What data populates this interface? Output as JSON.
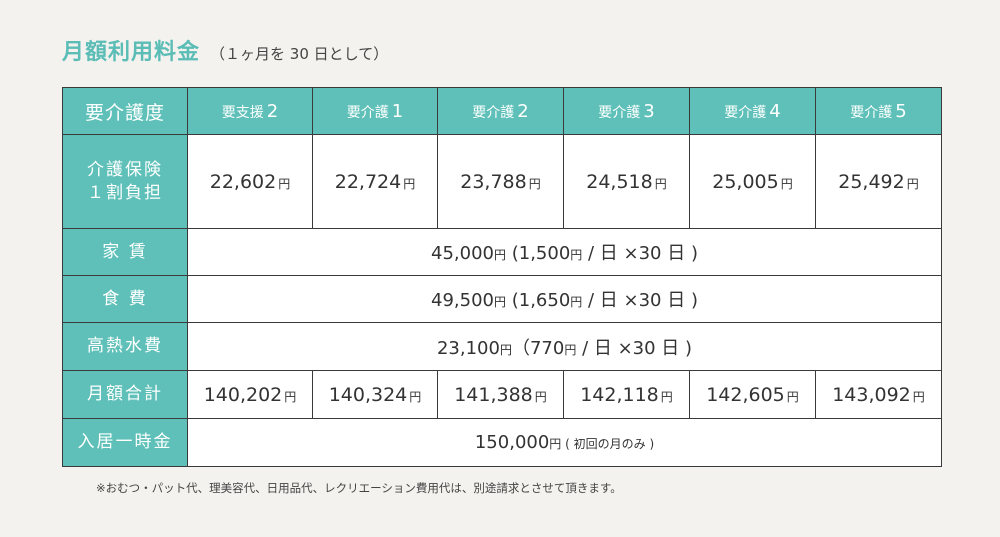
{
  "title": {
    "main": "月額利用料金",
    "sub": "（１ヶ月を 30 日として）"
  },
  "table": {
    "corner": "要介護度",
    "columns": [
      {
        "label": "要支援",
        "num": "2"
      },
      {
        "label": "要介護",
        "num": "1"
      },
      {
        "label": "要介護",
        "num": "2"
      },
      {
        "label": "要介護",
        "num": "3"
      },
      {
        "label": "要介護",
        "num": "4"
      },
      {
        "label": "要介護",
        "num": "5"
      }
    ],
    "yen": "円",
    "insurance": {
      "label_line1": "介護保険",
      "label_line2": "１割負担",
      "values": [
        "22,602",
        "22,724",
        "23,788",
        "24,518",
        "25,005",
        "25,492"
      ]
    },
    "rent": {
      "label": "家 賃",
      "amount": "45,000",
      "detail_open": " (1,500",
      "per_day": " / 日 ×30 日 )"
    },
    "food": {
      "label": "食 費",
      "amount": "49,500",
      "detail_open": " (1,650",
      "per_day": " / 日 ×30 日 )"
    },
    "utilities": {
      "label": "高熱水費",
      "amount": "23,100",
      "detail_open": "（770",
      "per_day": " / 日 ×30 日 )"
    },
    "monthly_total": {
      "label": "月額合計",
      "values": [
        "140,202",
        "140,324",
        "141,388",
        "142,118",
        "142,605",
        "143,092"
      ]
    },
    "admission": {
      "label": "入居一時金",
      "amount": "150,000",
      "detail": " ( 初回の月のみ )"
    }
  },
  "note": "※おむつ・パット代、理美容代、日用品代、レクリエーション費用代は、別途請求とさせて頂きます。"
}
